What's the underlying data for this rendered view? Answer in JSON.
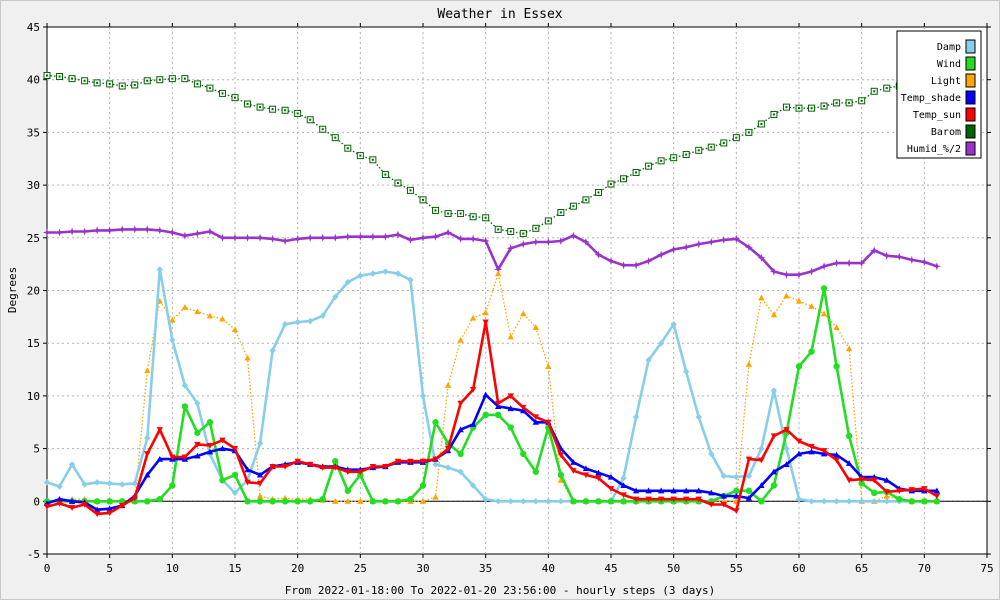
{
  "chart_data": {
    "type": "line",
    "title": "Weather in Essex",
    "xlabel": "From 2022-01-18:00 To 2022-01-20 23:56:00 - hourly steps (3 days)",
    "ylabel": "Degrees",
    "xlim": [
      0,
      75
    ],
    "ylim": [
      -5,
      45
    ],
    "xticks": [
      0,
      5,
      10,
      15,
      20,
      25,
      30,
      35,
      40,
      45,
      50,
      55,
      60,
      65,
      70,
      75
    ],
    "yticks": [
      -5,
      0,
      5,
      10,
      15,
      20,
      25,
      30,
      35,
      40,
      45
    ],
    "grid": true,
    "legend_position": "top-right",
    "x": [
      0,
      1,
      2,
      3,
      4,
      5,
      6,
      7,
      8,
      9,
      10,
      11,
      12,
      13,
      14,
      15,
      16,
      17,
      18,
      19,
      20,
      21,
      22,
      23,
      24,
      25,
      26,
      27,
      28,
      29,
      30,
      31,
      32,
      33,
      34,
      35,
      36,
      37,
      38,
      39,
      40,
      41,
      42,
      43,
      44,
      45,
      46,
      47,
      48,
      49,
      50,
      51,
      52,
      53,
      54,
      55,
      56,
      57,
      58,
      59,
      60,
      61,
      62,
      63,
      64,
      65,
      66,
      67,
      68,
      69,
      70,
      71
    ],
    "series": [
      {
        "name": "Damp",
        "color": "#87ceeb",
        "style": "solid",
        "marker": "diamond",
        "values": [
          1.8,
          1.4,
          3.5,
          1.6,
          1.8,
          1.7,
          1.6,
          1.7,
          6,
          22,
          15.3,
          11,
          9.3,
          4.5,
          2,
          0.8,
          2,
          5.5,
          14.3,
          16.8,
          17,
          17.1,
          17.6,
          19.4,
          20.8,
          21.4,
          21.6,
          21.8,
          21.6,
          21,
          10,
          3.5,
          3.2,
          2.8,
          1.5,
          0.2,
          0,
          0,
          0,
          0,
          0,
          0,
          0,
          0,
          0,
          0,
          2.2,
          8,
          13.4,
          15,
          16.8,
          12.3,
          8,
          4.5,
          2.4,
          2.3,
          2.4,
          5,
          10.5,
          5,
          0.2,
          0,
          0,
          0,
          0,
          0,
          0,
          0,
          0,
          0,
          0,
          0
        ]
      },
      {
        "name": "Wind",
        "color": "#22dd22",
        "style": "solid",
        "marker": "circle",
        "values": [
          0,
          0,
          0,
          0,
          0,
          0,
          0,
          0,
          0,
          0.2,
          1.5,
          9,
          6.5,
          7.5,
          2,
          2.5,
          0,
          0,
          0,
          0,
          0,
          0,
          0.2,
          3.8,
          1,
          2.5,
          0,
          0,
          0,
          0.2,
          1.5,
          7.5,
          5.5,
          4.5,
          7,
          8.2,
          8.2,
          7,
          4.5,
          2.8,
          7,
          2.5,
          0,
          0,
          0,
          0,
          0,
          0,
          0,
          0,
          0,
          0,
          0,
          0,
          0.5,
          1,
          1,
          0,
          1.5,
          6.5,
          12.8,
          14.2,
          20.2,
          12.8,
          6.2,
          1.7,
          0.8,
          0.9,
          0.2,
          0,
          0,
          0
        ]
      },
      {
        "name": "Light",
        "color": "#ffa500",
        "style": "dotted",
        "marker": "triangle-up",
        "values": [
          0,
          0,
          0.2,
          0.2,
          0,
          0,
          0,
          0,
          12.4,
          19,
          17.2,
          18.4,
          18,
          17.6,
          17.3,
          16.3,
          13.6,
          0.5,
          0.2,
          0.3,
          0.2,
          0.2,
          0.1,
          0,
          0,
          0,
          0,
          0,
          0,
          0,
          0,
          0.4,
          11,
          15.3,
          17.4,
          17.9,
          21.6,
          15.6,
          17.8,
          16.5,
          12.8,
          2,
          0,
          0,
          0,
          0,
          0,
          0,
          0,
          0,
          0,
          0,
          0,
          0,
          0,
          0,
          13,
          19.3,
          17.7,
          19.5,
          19,
          18.5,
          17.8,
          16.5,
          14.5,
          0,
          0,
          0.5,
          0.2,
          0,
          0,
          0
        ]
      },
      {
        "name": "Temp_shade",
        "color": "#0000ff",
        "style": "solid",
        "marker": "triangle-up",
        "values": [
          -0.2,
          0.2,
          0,
          -0.1,
          -0.8,
          -0.7,
          -0.4,
          0.5,
          2.5,
          4,
          4,
          4,
          4.3,
          4.7,
          5,
          4.8,
          3,
          2.5,
          3.3,
          3.5,
          3.7,
          3.5,
          3.3,
          3.3,
          3,
          3,
          3.2,
          3.3,
          3.7,
          3.7,
          3.7,
          4,
          4.8,
          6.8,
          7.3,
          10.1,
          9,
          8.8,
          8.6,
          7.5,
          7.5,
          5,
          3.7,
          3.1,
          2.7,
          2.3,
          1.5,
          1,
          1,
          1,
          1,
          1,
          1,
          0.8,
          0.5,
          0.5,
          0.3,
          1.5,
          2.8,
          3.5,
          4.5,
          4.7,
          4.5,
          4.4,
          3.6,
          2.3,
          2.3,
          2,
          1.2,
          1,
          1,
          1
        ]
      },
      {
        "name": "Temp_sun",
        "color": "#ff0000",
        "style": "solid",
        "marker": "triangle-down",
        "values": [
          -0.5,
          -0.2,
          -0.6,
          -0.3,
          -1.2,
          -1.1,
          -0.4,
          0.3,
          4.5,
          6.8,
          4.2,
          4.2,
          5.4,
          5.3,
          5.8,
          5,
          1.8,
          1.7,
          3.3,
          3.3,
          3.8,
          3.5,
          3.2,
          3.2,
          2.8,
          2.8,
          3.3,
          3.3,
          3.8,
          3.8,
          3.8,
          4,
          5,
          9.3,
          10.6,
          17,
          9.3,
          10,
          8.9,
          8,
          7.5,
          4.4,
          2.9,
          2.5,
          2.2,
          1.2,
          0.6,
          0.2,
          0.2,
          0.2,
          0.2,
          0.2,
          0.2,
          -0.3,
          -0.3,
          -0.9,
          4,
          3.9,
          6.2,
          6.8,
          5.7,
          5.2,
          4.8,
          3.9,
          2,
          2.1,
          2,
          0.9,
          1,
          1.1,
          1.2,
          0.5
        ]
      },
      {
        "name": "Barom",
        "color": "#006400",
        "style": "dotted",
        "marker": "square",
        "values": [
          40.4,
          40.3,
          40.1,
          39.9,
          39.7,
          39.6,
          39.4,
          39.5,
          39.9,
          40,
          40.1,
          40.1,
          39.6,
          39.2,
          38.7,
          38.3,
          37.7,
          37.4,
          37.2,
          37.1,
          36.8,
          36.2,
          35.3,
          34.5,
          33.5,
          32.8,
          32.4,
          31,
          30.2,
          29.5,
          28.6,
          27.6,
          27.3,
          27.3,
          27,
          26.9,
          25.8,
          25.6,
          25.4,
          25.9,
          26.6,
          27.4,
          28,
          28.6,
          29.3,
          30.1,
          30.6,
          31.2,
          31.8,
          32.3,
          32.6,
          32.9,
          33.3,
          33.6,
          34,
          34.5,
          35,
          35.8,
          36.7,
          37.4,
          37.3,
          37.3,
          37.5,
          37.8,
          37.8,
          38,
          38.9,
          39.2,
          39.4,
          40,
          40.3,
          40.1
        ]
      },
      {
        "name": "Humid_%/2",
        "color": "#9933cc",
        "style": "solid",
        "marker": "star",
        "values": [
          25.5,
          25.5,
          25.6,
          25.6,
          25.7,
          25.7,
          25.8,
          25.8,
          25.8,
          25.7,
          25.5,
          25.2,
          25.4,
          25.6,
          25,
          25,
          25,
          25,
          24.9,
          24.7,
          24.9,
          25,
          25,
          25,
          25.1,
          25.1,
          25.1,
          25.1,
          25.3,
          24.8,
          25,
          25.1,
          25.5,
          24.9,
          24.9,
          24.7,
          22,
          24,
          24.4,
          24.6,
          24.6,
          24.7,
          25.2,
          24.6,
          23.4,
          22.8,
          22.4,
          22.4,
          22.8,
          23.4,
          23.9,
          24.1,
          24.4,
          24.6,
          24.8,
          24.9,
          24.1,
          23.1,
          21.8,
          21.5,
          21.5,
          21.8,
          22.3,
          22.6,
          22.6,
          22.6,
          23.8,
          23.3,
          23.2,
          22.9,
          22.7,
          22.3
        ]
      }
    ]
  }
}
